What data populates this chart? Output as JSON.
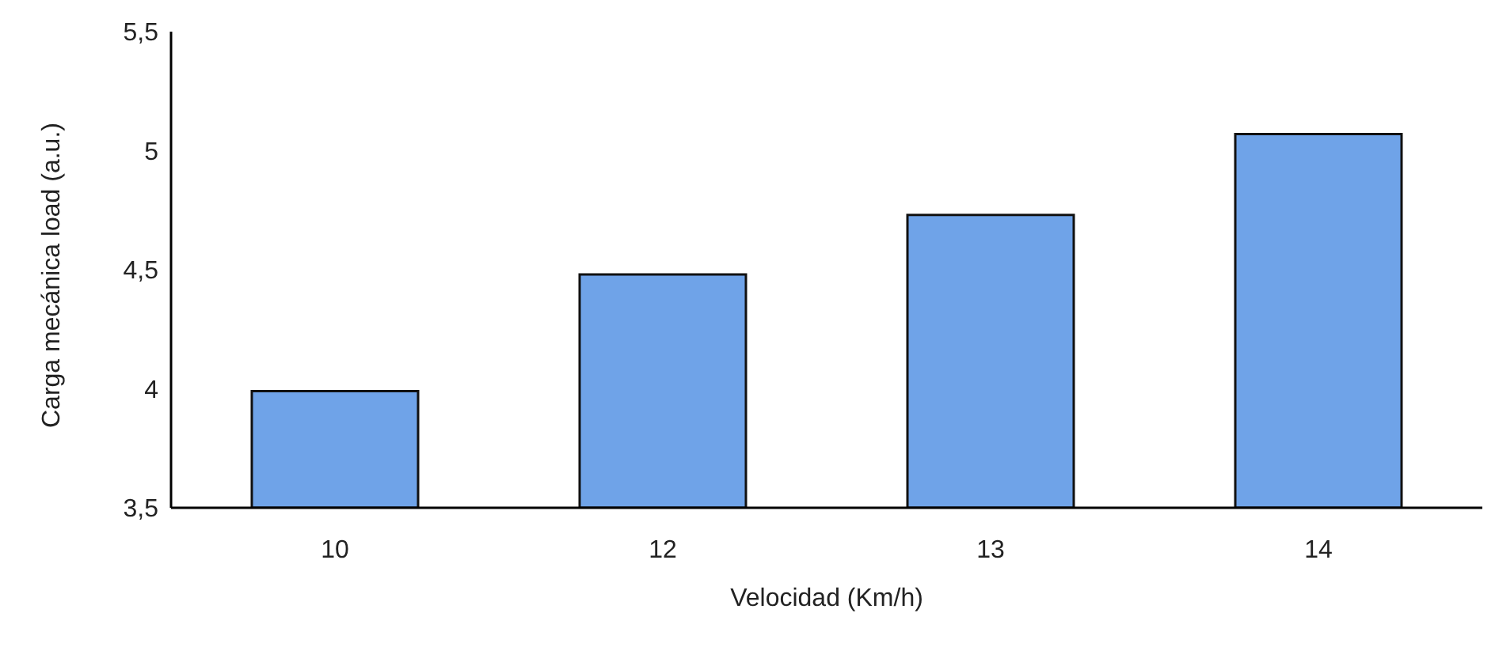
{
  "chart_data": {
    "type": "bar",
    "xlabel": "Velocidad (Km/h)",
    "ylabel": "Carga mecánica load (a.u.)",
    "categories": [
      "10",
      "12",
      "13",
      "14"
    ],
    "values": [
      3.99,
      4.48,
      4.73,
      5.07
    ],
    "color": "#6fa3e8",
    "ylim": [
      3.5,
      5.5
    ],
    "yticks": [
      {
        "value": 3.5,
        "label": "3,5"
      },
      4,
      {
        "value": 4.5,
        "label": "4,5"
      },
      5,
      {
        "value": 5.5,
        "label": "5,5"
      }
    ],
    "grid": false,
    "legend": false
  }
}
